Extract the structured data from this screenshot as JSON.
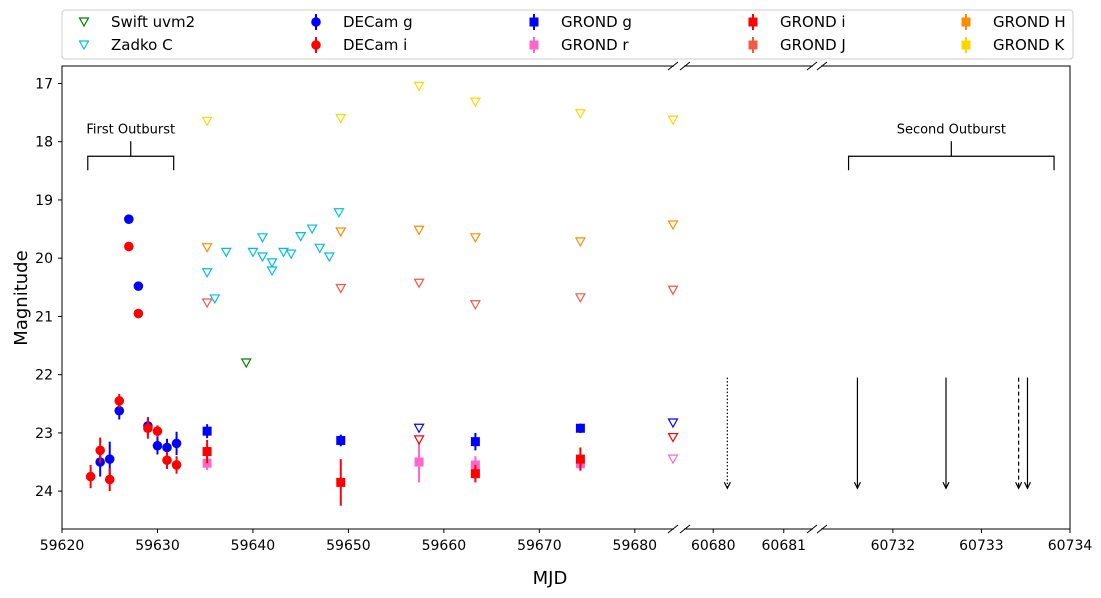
{
  "chart_data": {
    "type": "scatter",
    "xlabel": "MJD",
    "ylabel": "Magnitude",
    "ylim": [
      24.65,
      16.7
    ],
    "y_inverted": true,
    "yticks": [
      "17",
      "18",
      "19",
      "20",
      "21",
      "22",
      "23",
      "24"
    ],
    "x_segments": [
      {
        "range": [
          59620,
          59684
        ],
        "ticks": [
          "59620",
          "59630",
          "59640",
          "59650",
          "59660",
          "59670",
          "59680"
        ]
      },
      {
        "range": [
          60679.6,
          60681.4
        ],
        "ticks": [
          "60680",
          "60681"
        ]
      },
      {
        "range": [
          60731.2,
          60734
        ],
        "ticks": [
          "60732",
          "60733",
          "60734"
        ]
      }
    ],
    "legend_position": "top, above plot, 5 columns",
    "series": [
      {
        "name": "Swift uvm2",
        "marker": "tri",
        "color": "#008000",
        "points": [
          [
            59639.3,
            21.8
          ]
        ]
      },
      {
        "name": "Zadko C",
        "marker": "tri",
        "color": "#00bfde",
        "points": [
          [
            59635.2,
            20.25
          ],
          [
            59636.0,
            20.7
          ],
          [
            59637.2,
            19.9
          ],
          [
            59640,
            19.9
          ],
          [
            59641,
            19.98
          ],
          [
            59641.0,
            19.65
          ],
          [
            59642.0,
            20.08
          ],
          [
            59642.0,
            20.22
          ],
          [
            59643.2,
            19.9
          ],
          [
            59644.0,
            19.93
          ],
          [
            59645,
            19.63
          ],
          [
            59646.2,
            19.5
          ],
          [
            59647,
            19.83
          ],
          [
            59648,
            19.98
          ],
          [
            59649.0,
            19.22
          ]
        ]
      },
      {
        "name": "DECam g",
        "marker": "circle",
        "color": "#0000ff",
        "points": [
          [
            59624.0,
            23.5,
            0.25
          ],
          [
            59625,
            23.45,
            0.3
          ],
          [
            59626,
            22.62,
            0.15
          ],
          [
            59627,
            19.33,
            0.05
          ],
          [
            59628,
            20.48,
            0.05
          ],
          [
            59629,
            22.88,
            0.15
          ],
          [
            59630,
            23.22,
            0.15
          ],
          [
            59631,
            23.25,
            0.15
          ],
          [
            59632,
            23.18,
            0.2
          ]
        ]
      },
      {
        "name": "DECam i",
        "marker": "circle",
        "color": "#ff0000",
        "points": [
          [
            59623,
            23.75,
            0.2
          ],
          [
            59624,
            23.3,
            0.22
          ],
          [
            59625,
            23.8,
            0.2
          ],
          [
            59626,
            22.45,
            0.12
          ],
          [
            59627,
            19.8,
            0.05
          ],
          [
            59628,
            20.95,
            0.05
          ],
          [
            59629,
            22.92,
            0.18
          ],
          [
            59630,
            22.97,
            0.1
          ],
          [
            59631,
            23.47,
            0.15
          ],
          [
            59632,
            23.55,
            0.15
          ]
        ]
      },
      {
        "name": "GROND g",
        "marker": "square",
        "color": "#0000ff",
        "points": [
          [
            59635.2,
            22.97,
            0.12
          ],
          [
            59649.2,
            23.13,
            0.1
          ],
          [
            59663.3,
            23.15,
            0.15
          ],
          [
            59674.3,
            22.92,
            0.08
          ]
        ]
      },
      {
        "name": "GROND r",
        "marker": "square",
        "color": "#ff66cc",
        "points": [
          [
            59635.2,
            23.52,
            0.12
          ],
          [
            59657.4,
            23.5,
            0.35
          ],
          [
            59663.3,
            23.55,
            0.15
          ],
          [
            59674.3,
            23.53,
            0.1
          ]
        ]
      },
      {
        "name": "GROND i",
        "marker": "square",
        "color": "#ff0000",
        "points": [
          [
            59635.2,
            23.32,
            0.2
          ],
          [
            59649.2,
            23.85,
            0.4
          ],
          [
            59663.3,
            23.7,
            0.15
          ],
          [
            59674.3,
            23.45,
            0.2
          ]
        ]
      },
      {
        "name": "GROND J",
        "marker": "square",
        "color": "#f05a46",
        "points": []
      },
      {
        "name": "GROND H",
        "marker": "square",
        "color": "#ff8c00",
        "points": []
      },
      {
        "name": "GROND K",
        "marker": "square",
        "color": "#ffd500",
        "points": []
      },
      {
        "name": "GROND g limits",
        "legend": false,
        "marker": "tri",
        "color": "#0000ff",
        "points": [
          [
            59657.4,
            22.92
          ],
          [
            59684,
            22.83
          ]
        ]
      },
      {
        "name": "GROND r limits",
        "legend": false,
        "marker": "tri",
        "color": "#ff66cc",
        "points": [
          [
            59684,
            23.45
          ]
        ]
      },
      {
        "name": "GROND i limits",
        "legend": false,
        "marker": "tri",
        "color": "#ff0000",
        "points": [
          [
            59657.4,
            23.12
          ],
          [
            59684,
            23.08
          ]
        ]
      },
      {
        "name": "GROND J limits",
        "legend": false,
        "marker": "tri",
        "color": "#f05a46",
        "points": [
          [
            59635.2,
            20.77
          ],
          [
            59649.2,
            20.52
          ],
          [
            59657.4,
            20.43
          ],
          [
            59663.3,
            20.8
          ],
          [
            59674.3,
            20.68
          ],
          [
            59684,
            20.55
          ]
        ]
      },
      {
        "name": "GROND H limits",
        "legend": false,
        "marker": "tri",
        "color": "#ff8c00",
        "points": [
          [
            59635.2,
            19.82
          ],
          [
            59649.2,
            19.55
          ],
          [
            59657.4,
            19.52
          ],
          [
            59663.3,
            19.65
          ],
          [
            59674.3,
            19.72
          ],
          [
            59684,
            19.43
          ]
        ]
      },
      {
        "name": "GROND K limits",
        "legend": false,
        "marker": "tri",
        "color": "#ffd500",
        "points": [
          [
            59635.2,
            17.65
          ],
          [
            59649.2,
            17.6
          ],
          [
            59657.4,
            17.05
          ],
          [
            59663.3,
            17.32
          ],
          [
            59674.3,
            17.52
          ],
          [
            59684,
            17.63
          ]
        ]
      }
    ],
    "event_arrows": [
      {
        "x": 60680.2,
        "from": 22.05,
        "to": 23.95,
        "style": "dotted"
      },
      {
        "x": 60731.6,
        "from": 22.05,
        "to": 23.95,
        "style": "solid"
      },
      {
        "x": 60732.6,
        "from": 22.05,
        "to": 23.95,
        "style": "solid"
      },
      {
        "x": 60733.42,
        "from": 22.05,
        "to": 23.95,
        "style": "dashed"
      },
      {
        "x": 60733.52,
        "from": 22.05,
        "to": 23.95,
        "style": "solid"
      }
    ],
    "annotations": [
      {
        "text": "First Outburst",
        "x_from": 59622.7,
        "x_to": 59631.7,
        "y": 18.25
      },
      {
        "text": "Second Outburst",
        "x_from": 60731.5,
        "x_to": 60733.82,
        "y": 18.25
      }
    ]
  }
}
